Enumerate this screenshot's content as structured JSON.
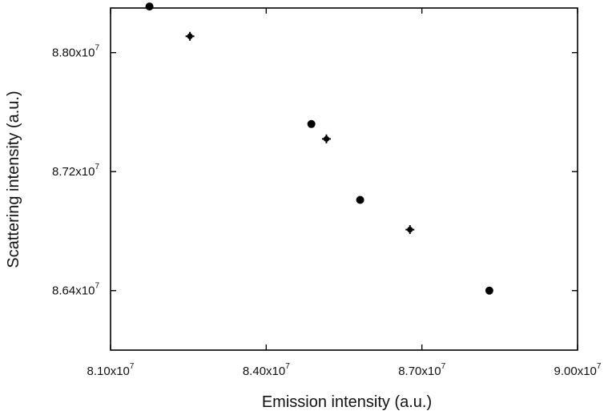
{
  "chart_data": {
    "type": "scatter",
    "title": "",
    "xlabel": "Emission intensity (a.u.)",
    "ylabel": "Scattering intensity (a.u.)",
    "xlim": [
      81000000,
      90000000
    ],
    "ylim": [
      86000000,
      88300000
    ],
    "x_ticks": [
      {
        "value": 81000000,
        "mantissa": "8.10x10",
        "exponent": "7"
      },
      {
        "value": 84000000,
        "mantissa": "8.40x10",
        "exponent": "7"
      },
      {
        "value": 87000000,
        "mantissa": "8.70x10",
        "exponent": "7"
      },
      {
        "value": 90000000,
        "mantissa": "9.00x10",
        "exponent": "7"
      }
    ],
    "y_ticks": [
      {
        "value": 86400000,
        "mantissa": "8.64x10",
        "exponent": "7"
      },
      {
        "value": 87200000,
        "mantissa": "8.72x10",
        "exponent": "7"
      },
      {
        "value": 88000000,
        "mantissa": "8.80x10",
        "exponent": "7"
      }
    ],
    "grid": false,
    "legend": "none",
    "series": [
      {
        "marker": "circle",
        "color": "#000000",
        "points": [
          {
            "x": 81750000,
            "y": 88310000
          },
          {
            "x": 84870000,
            "y": 87520000
          },
          {
            "x": 85810000,
            "y": 87010000
          },
          {
            "x": 88300000,
            "y": 86400000
          }
        ]
      },
      {
        "marker": "cross",
        "color": "#000000",
        "points": [
          {
            "x": 82530000,
            "y": 88110000
          },
          {
            "x": 85160000,
            "y": 87420000
          },
          {
            "x": 86770000,
            "y": 86810000
          }
        ]
      }
    ]
  }
}
